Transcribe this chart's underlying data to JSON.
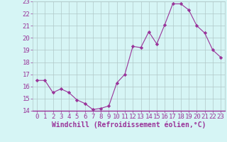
{
  "hours": [
    0,
    1,
    2,
    3,
    4,
    5,
    6,
    7,
    8,
    9,
    10,
    11,
    12,
    13,
    14,
    15,
    16,
    17,
    18,
    19,
    20,
    21,
    22,
    23
  ],
  "values": [
    16.5,
    16.5,
    15.5,
    15.8,
    15.5,
    14.9,
    14.6,
    14.1,
    14.2,
    14.4,
    16.3,
    17.0,
    19.3,
    19.2,
    20.5,
    19.5,
    21.1,
    22.8,
    22.8,
    22.3,
    21.0,
    20.4,
    19.0,
    18.4
  ],
  "line_color": "#993399",
  "marker": "D",
  "marker_size": 2.2,
  "bg_color": "#d6f5f5",
  "grid_color": "#b0c8c8",
  "axis_label_color": "#993399",
  "xlabel": "Windchill (Refroidissement éolien,°C)",
  "ylim": [
    14,
    23
  ],
  "yticks": [
    14,
    15,
    16,
    17,
    18,
    19,
    20,
    21,
    22,
    23
  ],
  "xticks": [
    0,
    1,
    2,
    3,
    4,
    5,
    6,
    7,
    8,
    9,
    10,
    11,
    12,
    13,
    14,
    15,
    16,
    17,
    18,
    19,
    20,
    21,
    22,
    23
  ],
  "font_size_tick": 6.5,
  "font_size_xlabel": 7.0,
  "linewidth": 0.8
}
